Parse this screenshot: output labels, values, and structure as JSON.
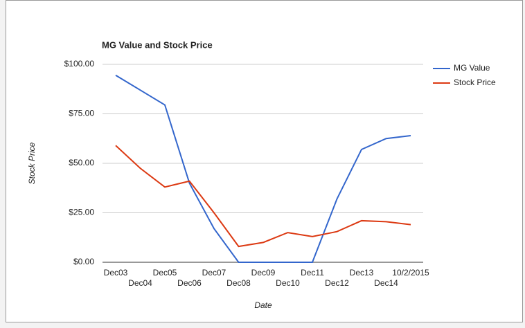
{
  "chart_data": {
    "type": "line",
    "title": "MG Value and Stock Price",
    "x_label": "Date",
    "y_label": "Stock Price",
    "categories": [
      "Dec03",
      "Dec04",
      "Dec05",
      "Dec06",
      "Dec07",
      "Dec08",
      "Dec09",
      "Dec10",
      "Dec11",
      "Dec12",
      "Dec13",
      "Dec14",
      "10/2/2015"
    ],
    "series": [
      {
        "name": "MG Value",
        "color": "#3366cc",
        "values": [
          94.5,
          87,
          79.5,
          40,
          17,
          0,
          0,
          0,
          0,
          32,
          57,
          62.5,
          64
        ]
      },
      {
        "name": "Stock Price",
        "color": "#dc3912",
        "values": [
          59,
          47.5,
          38,
          41,
          25,
          8,
          10,
          15,
          13,
          15.5,
          21,
          20.5,
          19
        ]
      }
    ],
    "ylim": [
      0,
      100
    ],
    "yticks": [
      {
        "value": 0,
        "label": "$0.00"
      },
      {
        "value": 25,
        "label": "$25.00"
      },
      {
        "value": 50,
        "label": "$50.00"
      },
      {
        "value": 75,
        "label": "$75.00"
      },
      {
        "value": 100,
        "label": "$100.00"
      }
    ],
    "grid": true,
    "legend": "right"
  }
}
